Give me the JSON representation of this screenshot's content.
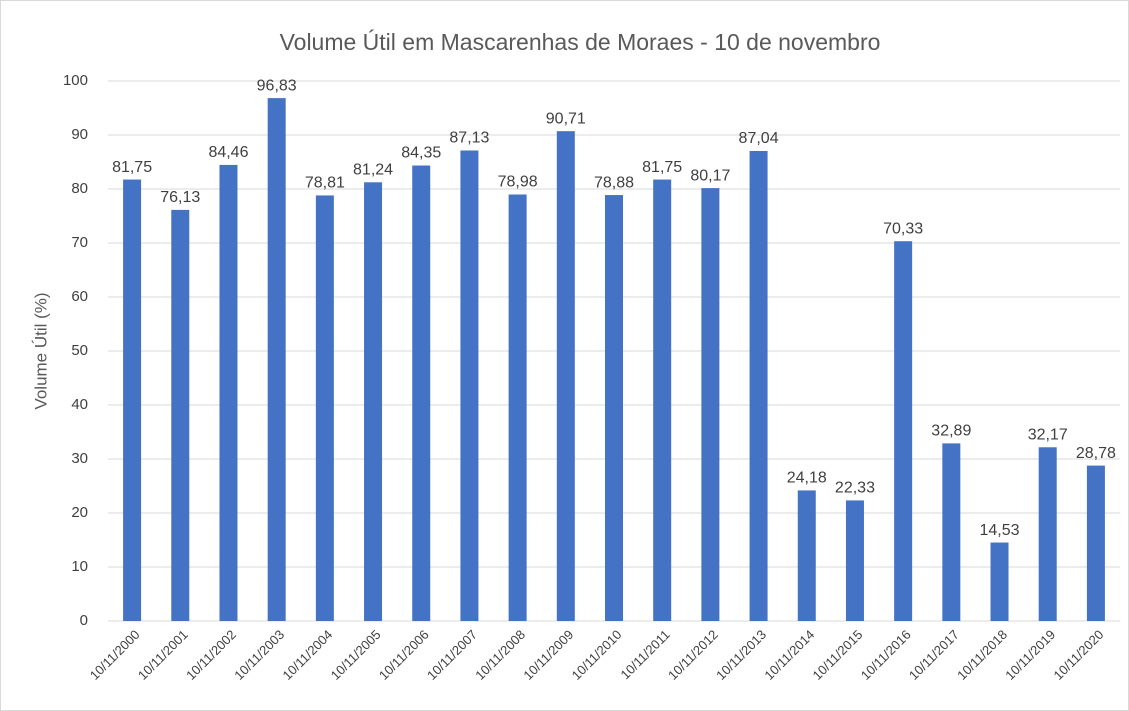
{
  "chart_data": {
    "type": "bar",
    "title": "Volume Útil em Mascarenhas de Moraes - 10 de novembro",
    "y_label": "Volume Útil (%)",
    "categories": [
      "10/11/2000",
      "10/11/2001",
      "10/11/2002",
      "10/11/2003",
      "10/11/2004",
      "10/11/2005",
      "10/11/2006",
      "10/11/2007",
      "10/11/2008",
      "10/11/2009",
      "10/11/2010",
      "10/11/2011",
      "10/11/2012",
      "10/11/2013",
      "10/11/2014",
      "10/11/2015",
      "10/11/2016",
      "10/11/2017",
      "10/11/2018",
      "10/11/2019",
      "10/11/2020"
    ],
    "values": [
      81.75,
      76.13,
      84.46,
      96.83,
      78.81,
      81.24,
      84.35,
      87.13,
      78.98,
      90.71,
      78.88,
      81.75,
      80.17,
      87.04,
      24.18,
      22.33,
      70.33,
      32.89,
      14.53,
      32.17,
      28.78
    ],
    "value_labels": [
      "81,75",
      "76,13",
      "84,46",
      "96,83",
      "78,81",
      "81,24",
      "84,35",
      "87,13",
      "78,98",
      "90,71",
      "78,88",
      "81,75",
      "80,17",
      "87,04",
      "24,18",
      "22,33",
      "70,33",
      "32,89",
      "14,53",
      "32,17",
      "28,78"
    ],
    "color": "#4472c4",
    "ylim": [
      0,
      100
    ],
    "yticks": [
      0,
      10,
      20,
      30,
      40,
      50,
      60,
      70,
      80,
      90,
      100
    ],
    "grid": true
  }
}
